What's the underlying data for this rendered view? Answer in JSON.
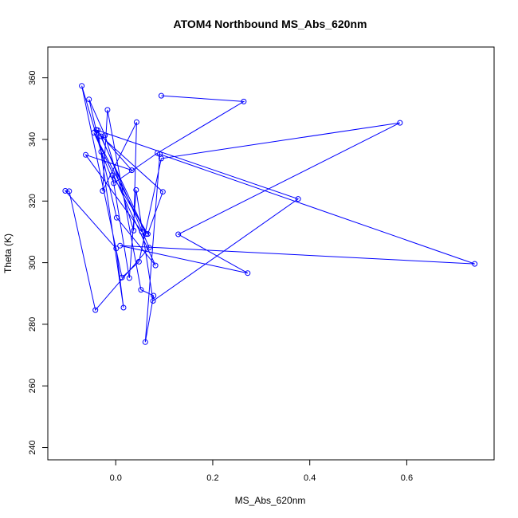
{
  "chart_data": {
    "type": "line",
    "title": "ATOM4 Northbound MS_Abs_620nm",
    "xlabel": "MS_Abs_620nm",
    "ylabel": "Theta (K)",
    "xlim": [
      -0.14,
      0.78
    ],
    "ylim": [
      236,
      370
    ],
    "xticks": [
      0.0,
      0.2,
      0.4,
      0.6
    ],
    "xtick_labels": [
      "0.0",
      "0.2",
      "0.4",
      "0.6"
    ],
    "yticks": [
      240,
      260,
      280,
      300,
      320,
      340,
      360
    ],
    "ytick_labels": [
      "240",
      "260",
      "280",
      "300",
      "320",
      "340",
      "360"
    ],
    "grid": false,
    "marker": "open-circle",
    "series": [
      {
        "color": "#0000ff",
        "x": [
          0.094,
          0.264,
          0.086,
          -0.004,
          -0.03,
          -0.07,
          0.013,
          0.048,
          0.094,
          0.586,
          0.129,
          0.272,
          0.009,
          0.74,
          0.091,
          0.061,
          0.078,
          0.052,
          -0.017,
          -0.027,
          0.043,
          0.037,
          -0.022,
          -0.055,
          0.002,
          0.082,
          -0.045,
          0.063,
          -0.037,
          0.016,
          0.001,
          -0.104,
          -0.096,
          -0.042,
          0.069,
          -0.03,
          0.097,
          0.066,
          -0.007,
          0.028,
          0.042,
          0.077,
          0.376,
          -0.04,
          0.033,
          -0.062,
          0.054
        ],
        "y": [
          354.2,
          352.3,
          335.6,
          325.8,
          336.0,
          357.4,
          295.2,
          300.3,
          333.8,
          345.4,
          309.2,
          296.6,
          305.5,
          299.6,
          335.2,
          274.2,
          289.3,
          291.2,
          349.6,
          323.3,
          345.6,
          310.4,
          341.3,
          353.0,
          314.6,
          299.1,
          342.2,
          309.3,
          343.0,
          285.4,
          304.6,
          323.3,
          323.2,
          284.6,
          304.9,
          341.0,
          323.0,
          309.3,
          328.4,
          295.0,
          323.6,
          287.6,
          320.7,
          343.1,
          330.0,
          335.0,
          310.0
        ]
      }
    ]
  }
}
